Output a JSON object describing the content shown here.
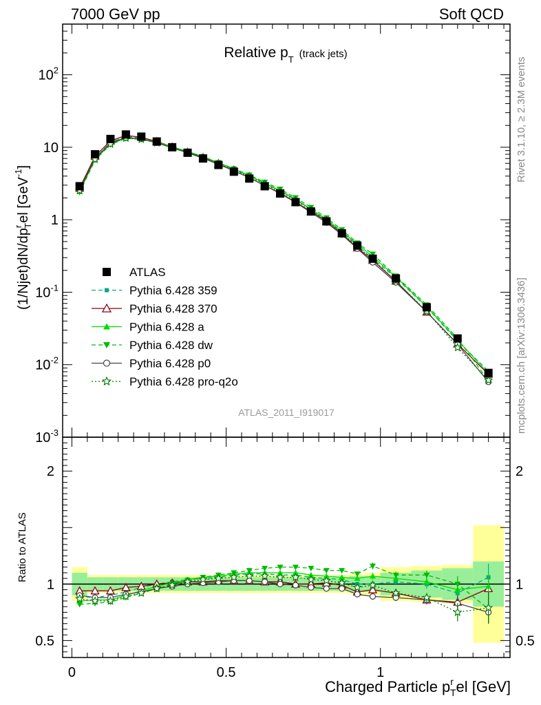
{
  "header": {
    "left": "7000 GeV pp",
    "right": "Soft QCD"
  },
  "side_text": {
    "rivet": "Rivet 3.1.10, ≥ 2.3M events",
    "mcplots": "mcplots.cern.ch [arXiv:1306.3436]"
  },
  "watermark": "ATLAS_2011_I919017",
  "chart_data": {
    "type": "scatter",
    "title": "Relative p",
    "title_sub": "T",
    "title_note": "(track jets)",
    "xlabel": "Charged Particle p",
    "xlabel_sup": "r",
    "xlabel_sub": "T",
    "xlabel_tail": "el [GeV]",
    "ylabel": "(1/Njet)dN/dp",
    "ylabel_sup": "r",
    "ylabel_sub": "T",
    "ylabel_tail": "el [GeV",
    "ylabel_unit_sup": "-1",
    "ylabel_close": "]",
    "ratio_ylabel": "Ratio to ATLAS",
    "xlim": [
      -0.03,
      1.42
    ],
    "ylim": [
      0.001,
      500
    ],
    "ratio_ylim": [
      0.35,
      2.3
    ],
    "x_ticks": [
      {
        "v": 0,
        "label": "0"
      },
      {
        "v": 0.5,
        "label": "0.5"
      },
      {
        "v": 1,
        "label": "1"
      }
    ],
    "y_ticks": [
      {
        "v": 0.001,
        "base": "10",
        "exp": "-3"
      },
      {
        "v": 0.01,
        "base": "10",
        "exp": "-2"
      },
      {
        "v": 0.1,
        "base": "10",
        "exp": "-1"
      },
      {
        "v": 1,
        "base": "1",
        "exp": ""
      },
      {
        "v": 10,
        "base": "10",
        "exp": ""
      },
      {
        "v": 100,
        "base": "10",
        "exp": "2"
      }
    ],
    "ratio_ticks": [
      {
        "v": 0.5,
        "label": "0.5"
      },
      {
        "v": 1,
        "label": "1"
      },
      {
        "v": 2,
        "label": "2"
      }
    ],
    "x": [
      0.025,
      0.075,
      0.125,
      0.175,
      0.225,
      0.275,
      0.325,
      0.375,
      0.425,
      0.475,
      0.525,
      0.575,
      0.625,
      0.675,
      0.725,
      0.775,
      0.825,
      0.875,
      0.925,
      0.975,
      1.05,
      1.15,
      1.25,
      1.35
    ],
    "xerr": [
      0.025,
      0.025,
      0.025,
      0.025,
      0.025,
      0.025,
      0.025,
      0.025,
      0.025,
      0.025,
      0.025,
      0.025,
      0.025,
      0.025,
      0.025,
      0.025,
      0.025,
      0.025,
      0.025,
      0.025,
      0.05,
      0.05,
      0.05,
      0.05
    ],
    "atlas": [
      2.9,
      8.0,
      13.0,
      15.0,
      14.0,
      12.0,
      10.0,
      8.4,
      7.0,
      5.7,
      4.6,
      3.7,
      2.9,
      2.3,
      1.75,
      1.3,
      0.95,
      0.65,
      0.44,
      0.29,
      0.155,
      0.062,
      0.023,
      0.0077
    ],
    "band_green": [
      0.1,
      0.06,
      0.06,
      0.06,
      0.06,
      0.06,
      0.06,
      0.06,
      0.06,
      0.06,
      0.06,
      0.06,
      0.06,
      0.06,
      0.06,
      0.06,
      0.06,
      0.06,
      0.07,
      0.07,
      0.1,
      0.12,
      0.14,
      0.2
    ],
    "band_yellow": [
      0.15,
      0.08,
      0.08,
      0.08,
      0.08,
      0.08,
      0.08,
      0.08,
      0.08,
      0.08,
      0.08,
      0.08,
      0.08,
      0.08,
      0.08,
      0.08,
      0.08,
      0.08,
      0.09,
      0.1,
      0.15,
      0.16,
      0.17,
      0.52
    ],
    "series": [
      {
        "name": "Pythia 6.428 359",
        "color": "#00aa88",
        "marker": "square-small",
        "dash": "6,4",
        "ratio": [
          0.89,
          0.88,
          0.9,
          0.93,
          0.97,
          1.0,
          1.02,
          1.04,
          1.05,
          1.06,
          1.08,
          1.09,
          1.09,
          1.08,
          1.08,
          1.06,
          1.05,
          1.04,
          1.0,
          1.0,
          1.02,
          1.0,
          0.92,
          1.06
        ],
        "err": [
          0.01,
          0.01,
          0.01,
          0.01,
          0.01,
          0.01,
          0.01,
          0.01,
          0.01,
          0.01,
          0.01,
          0.01,
          0.01,
          0.01,
          0.01,
          0.02,
          0.02,
          0.02,
          0.02,
          0.03,
          0.03,
          0.04,
          0.07,
          0.12
        ]
      },
      {
        "name": "Pythia 6.428 370",
        "color": "#8b0010",
        "marker": "triangle-open",
        "dash": "",
        "ratio": [
          0.94,
          0.94,
          0.94,
          0.97,
          0.98,
          1.0,
          1.01,
          1.02,
          1.02,
          1.03,
          1.03,
          1.03,
          1.02,
          1.02,
          1.0,
          1.0,
          1.01,
          0.99,
          0.93,
          0.95,
          0.92,
          0.86,
          0.84,
          0.96
        ],
        "err": [
          0.01,
          0.01,
          0.01,
          0.01,
          0.01,
          0.01,
          0.01,
          0.01,
          0.01,
          0.01,
          0.01,
          0.01,
          0.01,
          0.01,
          0.01,
          0.02,
          0.02,
          0.02,
          0.02,
          0.03,
          0.03,
          0.04,
          0.07,
          0.1
        ]
      },
      {
        "name": "Pythia 6.428 a",
        "color": "#00dd00",
        "marker": "triangle-full",
        "dash": "",
        "ratio": [
          0.85,
          0.86,
          0.86,
          0.9,
          0.94,
          0.98,
          1.01,
          1.04,
          1.06,
          1.07,
          1.09,
          1.1,
          1.1,
          1.1,
          1.1,
          1.08,
          1.07,
          1.06,
          1.05,
          1.07,
          1.05,
          1.02,
          0.95,
          0.98
        ],
        "err": [
          0.01,
          0.01,
          0.01,
          0.01,
          0.01,
          0.01,
          0.01,
          0.01,
          0.01,
          0.01,
          0.01,
          0.01,
          0.01,
          0.01,
          0.01,
          0.02,
          0.02,
          0.02,
          0.02,
          0.03,
          0.03,
          0.04,
          0.07,
          0.12
        ]
      },
      {
        "name": "Pythia 6.428 dw",
        "color": "#00bb00",
        "marker": "triangle-down",
        "dash": "6,4",
        "ratio": [
          0.82,
          0.83,
          0.84,
          0.88,
          0.92,
          0.96,
          1.0,
          1.03,
          1.06,
          1.08,
          1.1,
          1.12,
          1.14,
          1.15,
          1.15,
          1.14,
          1.12,
          1.12,
          1.09,
          1.16,
          1.08,
          1.08,
          1.0,
          0.78
        ],
        "err": [
          0.01,
          0.01,
          0.01,
          0.01,
          0.01,
          0.01,
          0.01,
          0.01,
          0.01,
          0.01,
          0.01,
          0.01,
          0.01,
          0.01,
          0.01,
          0.02,
          0.02,
          0.02,
          0.02,
          0.03,
          0.03,
          0.04,
          0.07,
          0.12
        ]
      },
      {
        "name": "Pythia 6.428 p0",
        "color": "#444444",
        "marker": "circle-open",
        "dash": "",
        "ratio": [
          0.9,
          0.88,
          0.88,
          0.91,
          0.93,
          0.96,
          0.98,
          1.0,
          1.01,
          1.02,
          1.03,
          1.03,
          1.02,
          1.0,
          0.99,
          0.97,
          0.96,
          0.96,
          0.91,
          0.89,
          0.88,
          0.86,
          0.83,
          0.75
        ],
        "err": [
          0.01,
          0.01,
          0.01,
          0.01,
          0.01,
          0.01,
          0.01,
          0.01,
          0.01,
          0.01,
          0.01,
          0.01,
          0.01,
          0.01,
          0.01,
          0.02,
          0.02,
          0.02,
          0.02,
          0.03,
          0.03,
          0.04,
          0.07,
          0.1
        ]
      },
      {
        "name": "Pythia 6.428 pro-q2o",
        "color": "#007700",
        "marker": "star-open",
        "dash": "2,3",
        "ratio": [
          0.87,
          0.85,
          0.85,
          0.89,
          0.92,
          0.96,
          0.99,
          1.02,
          1.04,
          1.05,
          1.06,
          1.07,
          1.07,
          1.06,
          1.06,
          1.04,
          1.03,
          1.01,
          0.97,
          0.99,
          0.92,
          0.88,
          0.75,
          0.79
        ],
        "err": [
          0.01,
          0.01,
          0.01,
          0.01,
          0.01,
          0.01,
          0.01,
          0.01,
          0.01,
          0.01,
          0.01,
          0.01,
          0.01,
          0.01,
          0.01,
          0.02,
          0.02,
          0.02,
          0.02,
          0.03,
          0.03,
          0.04,
          0.08,
          0.14
        ]
      }
    ],
    "legend": {
      "data_label": "ATLAS",
      "placement": "left-middle"
    }
  }
}
